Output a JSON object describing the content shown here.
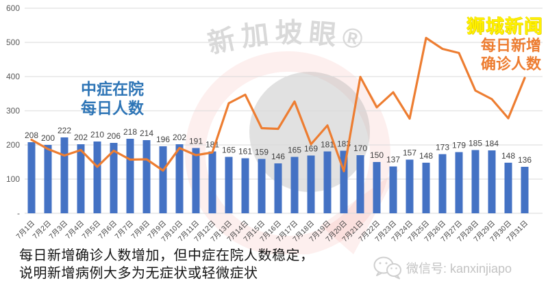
{
  "brand": {
    "text": "狮城新闻",
    "color": "#FFF100"
  },
  "watermark": {
    "arc_text": "新加坡眼®"
  },
  "series_labels": {
    "bar": {
      "lines": [
        "中症在院",
        "每日人数"
      ],
      "color": "#2E75B6"
    },
    "line": {
      "lines": [
        "每日新增",
        "确诊人数"
      ],
      "color": "#ED7D31"
    }
  },
  "chart_data": {
    "type": "bar",
    "subtype": "combo bar+line",
    "categories": [
      "7月1日",
      "7月2日",
      "7月3日",
      "7月4日",
      "7月5日",
      "7月6日",
      "7月7日",
      "7月8日",
      "7月9日",
      "7月10日",
      "7月11日",
      "7月12日",
      "7月13日",
      "7月14日",
      "7月15日",
      "7月16日",
      "7月17日",
      "7月18日",
      "7月19日",
      "7月20日",
      "7月21日",
      "7月22日",
      "7月23日",
      "7月24日",
      "7月25日",
      "7月26日",
      "7月27日",
      "7月28日",
      "7月29日",
      "7月30日",
      "7月31日"
    ],
    "series": [
      {
        "name": "中症在院每日人数",
        "chart_type": "bar",
        "color": "#4472C4",
        "data_labels": true,
        "values": [
          208,
          200,
          222,
          202,
          210,
          206,
          218,
          214,
          196,
          202,
          191,
          181,
          165,
          161,
          159,
          146,
          165,
          169,
          181,
          183,
          170,
          150,
          137,
          157,
          148,
          173,
          179,
          185,
          184,
          148,
          136
        ]
      },
      {
        "name": "每日新增确诊人数",
        "chart_type": "line",
        "color": "#ED7D31",
        "data_labels": false,
        "values": [
          215,
          188,
          169,
          185,
          136,
          183,
          157,
          158,
          125,
          191,
          170,
          178,
          322,
          347,
          249,
          247,
          327,
          202,
          257,
          123,
          399,
          310,
          354,
          277,
          513,
          481,
          469,
          359,
          334,
          278,
          396
        ]
      }
    ],
    "ylim": [
      0,
      600
    ],
    "ytick_interval": 100,
    "ytick_labels": [
      "-",
      "100",
      "200",
      "300",
      "400",
      "500",
      "600"
    ],
    "grid": "horizontal",
    "x_label_rotation": -45,
    "legend_position": "floating text labels"
  },
  "caption": {
    "line1": "每日新增确诊人数增加，但中症在院人数稳定，",
    "line2": "说明新增病例大多为无症状或轻微症状"
  },
  "footer": {
    "wechat": "微信号: kanxinjiapo"
  },
  "colors": {
    "bar": "#4472C4",
    "line": "#ED7D31",
    "grid": "#D9D9D9",
    "ytick_text": "#595959",
    "xtick_text": "#444444",
    "bar_label": "#3F3F3F",
    "caption_text": "#141414",
    "wechat_text": "#C3C3C3",
    "wechat_icon": "#CFCFCF",
    "watermark_pink": "rgba(231,98,84,0.10)",
    "watermark_gray": "rgba(176,176,176,0.38)",
    "watermark_text": "#D9D9D9"
  }
}
